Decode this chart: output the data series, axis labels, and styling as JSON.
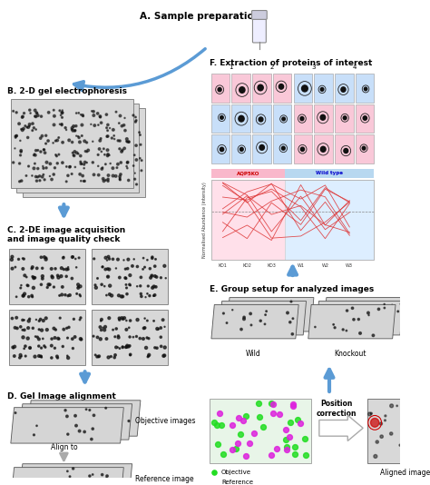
{
  "bg_color": "#ffffff",
  "text_color": "#000000",
  "arrow_color": "#5b9bd5",
  "sections": {
    "A": "A. Sample preparation",
    "B": "B. 2-D gel electrophoresis",
    "C": "C. 2-DE image acquisition\nand image quality check",
    "D": "D. Gel Image alignment",
    "E": "E. Group setup for analyzed images",
    "F": "F. Extraction of proteins of interest"
  },
  "pink_color": "#f9b8cb",
  "blue_color": "#b8d8f0",
  "red_line_color": "#dd3333",
  "green_dot": "#22dd22",
  "magenta_dot": "#dd22dd",
  "gel_color": "#c8c8c8",
  "xlabels": [
    "KO1",
    "KO2",
    "KO3",
    "W1",
    "W2",
    "W3"
  ],
  "col_labels": [
    "1",
    "2",
    "3",
    "4"
  ]
}
